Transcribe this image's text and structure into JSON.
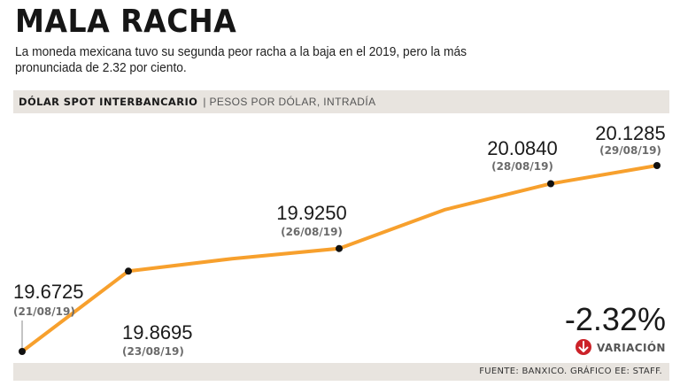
{
  "header": {
    "title": "MALA RACHA",
    "subtitle": "La moneda mexicana tuvo su segunda peor racha a la baja en el 2019, pero la más pronunciada de 2.32 por ciento."
  },
  "band": {
    "label_bold": "DÓLAR SPOT INTERBANCARIO",
    "separator": "|",
    "label_light": "PESOS POR DÓLAR, INTRADÍA"
  },
  "variation": {
    "value": "-2.32%",
    "label": "VARIACIÓN",
    "icon": "down-arrow-circle-icon",
    "icon_color": "#cc2229"
  },
  "footer": {
    "source": "FUENTE: BANXICO. GRÁFICO EE: STAFF."
  },
  "colors": {
    "line": "#f7a02d",
    "marker": "#111111"
  },
  "chart_data": {
    "type": "line",
    "x": [
      "21/08/19",
      "23/08/19",
      "",
      "26/08/19",
      "",
      "28/08/19",
      "29/08/19"
    ],
    "values": [
      19.6725,
      19.8695,
      19.9,
      19.925,
      20.02,
      20.084,
      20.1285
    ],
    "point_labels": [
      {
        "value": "19.6725",
        "date": "(21/08/19)"
      },
      {
        "value": "19.8695",
        "date": "(23/08/19)"
      },
      null,
      {
        "value": "19.9250",
        "date": "(26/08/19)"
      },
      null,
      {
        "value": "20.0840",
        "date": "(28/08/19)"
      },
      {
        "value": "20.1285",
        "date": "(29/08/19)"
      }
    ],
    "markers": [
      true,
      true,
      false,
      true,
      false,
      true,
      true
    ],
    "ylim": [
      19.6,
      20.2
    ],
    "grid": false,
    "title": "",
    "xlabel": "",
    "ylabel": ""
  }
}
